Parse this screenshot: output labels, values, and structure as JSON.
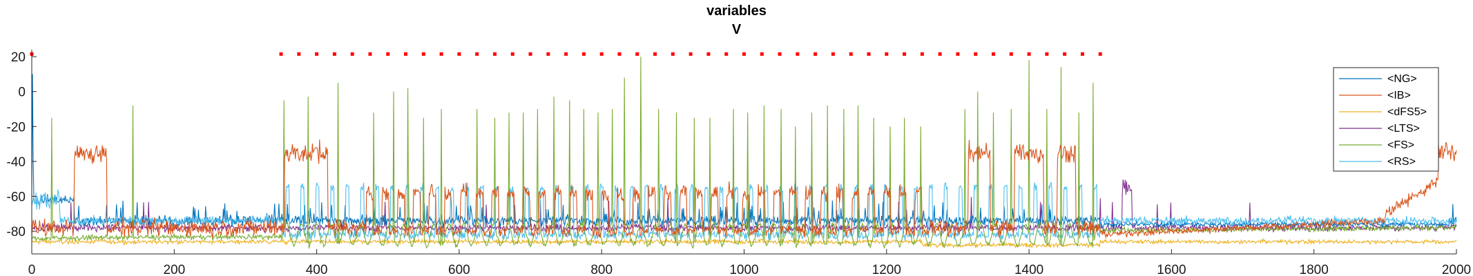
{
  "chart_data": {
    "type": "line",
    "title": "variables",
    "subtitle": "V",
    "xlabel": "",
    "ylabel": "",
    "xlim": [
      0,
      2000
    ],
    "ylim": [
      -93,
      24
    ],
    "x_ticks": [
      0,
      200,
      400,
      600,
      800,
      1000,
      1200,
      1400,
      1600,
      1800,
      2000
    ],
    "y_ticks": [
      20,
      0,
      -20,
      -40,
      -60,
      -80
    ],
    "grid": false,
    "legend_position": "top-right",
    "series": [
      {
        "name": "<NG>",
        "color": "#0072BD",
        "baseline": -72,
        "peak": -48,
        "noise": 3
      },
      {
        "name": "<IB>",
        "color": "#D95319",
        "baseline": -78,
        "peak": -22,
        "noise": 5
      },
      {
        "name": "<dFS5>",
        "color": "#EDB120",
        "baseline": -86,
        "peak": -80,
        "noise": 1.2
      },
      {
        "name": "<LTS>",
        "color": "#7E2F8E",
        "baseline": -78,
        "peak": -58,
        "noise": 2
      },
      {
        "name": "<FS>",
        "color": "#77AC30",
        "baseline": -82,
        "peak": 20,
        "noise": 2
      },
      {
        "name": "<RS>",
        "color": "#4DBEEE",
        "baseline": -76,
        "peak": -45,
        "noise": 2.5
      }
    ],
    "bursts": {
      "ib_bursts": [
        [
          60,
          105
        ],
        [
          355,
          415
        ],
        [
          1315,
          1345
        ],
        [
          1380,
          1420
        ],
        [
          1440,
          1465
        ],
        [
          1975,
          2000
        ]
      ],
      "ib_small_bursts_start": 470,
      "ib_small_bursts_end": 1260,
      "ib_small_bursts_period": 22,
      "fs_spike_times": [
        28,
        142,
        354,
        388,
        430,
        480,
        508,
        528,
        550,
        575,
        625,
        650,
        670,
        690,
        710,
        733,
        755,
        775,
        795,
        815,
        832,
        855,
        880,
        905,
        930,
        952,
        985,
        1005,
        1028,
        1052,
        1072,
        1095,
        1117,
        1140,
        1160,
        1182,
        1205,
        1225,
        1248,
        1310,
        1328,
        1350,
        1375,
        1400,
        1425,
        1445,
        1470,
        1490
      ],
      "fs_spike_peaks": [
        -15,
        -8,
        -5,
        -3,
        5,
        -12,
        0,
        2,
        -15,
        -10,
        -10,
        -15,
        -12,
        -12,
        -10,
        -3,
        -5,
        -10,
        -12,
        -10,
        8,
        20,
        -10,
        -12,
        -15,
        -15,
        -10,
        -12,
        -8,
        -10,
        -20,
        -12,
        -8,
        -10,
        -8,
        -15,
        -20,
        -15,
        -20,
        -10,
        0,
        -12,
        -10,
        18,
        -10,
        14,
        -12,
        5
      ]
    },
    "markers": {
      "color": "#FF0000",
      "y_value": 21.5,
      "x_values": [
        0,
        350,
        375,
        400,
        425,
        450,
        475,
        500,
        525,
        550,
        575,
        600,
        625,
        650,
        675,
        700,
        725,
        750,
        775,
        800,
        825,
        850,
        875,
        900,
        925,
        950,
        975,
        1000,
        1025,
        1050,
        1075,
        1100,
        1125,
        1150,
        1175,
        1200,
        1225,
        1250,
        1275,
        1300,
        1325,
        1350,
        1375,
        1400,
        1425,
        1450,
        1475,
        1500
      ]
    }
  }
}
